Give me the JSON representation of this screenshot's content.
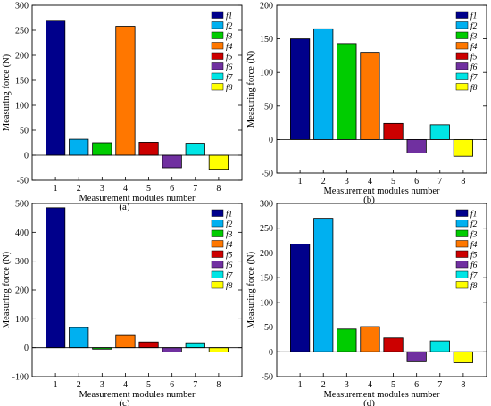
{
  "colors": {
    "f1": "#00008b",
    "f2": "#00b0f0",
    "f3": "#00cc00",
    "f4": "#ff7700",
    "f5": "#cc0000",
    "f6": "#7030a0",
    "f7": "#00e5e5",
    "f8": "#ffff00"
  },
  "chart_data": [
    {
      "type": "bar",
      "panel_label": "(a)",
      "xlabel": "Measurement modules number",
      "ylabel": "Measuring force  (N)",
      "categories": [
        "1",
        "2",
        "3",
        "4",
        "5",
        "6",
        "7",
        "8"
      ],
      "values": [
        270,
        32,
        25,
        258,
        26,
        -25,
        24,
        -28
      ],
      "ylim": [
        -50,
        300
      ],
      "yticks": [
        -50,
        0,
        50,
        100,
        150,
        200,
        250,
        300
      ],
      "legend": [
        "f1",
        "f2",
        "f3",
        "f4",
        "f5",
        "f6",
        "f7",
        "f8"
      ],
      "legend_position": "top-right",
      "grid": false
    },
    {
      "type": "bar",
      "panel_label": "(b)",
      "xlabel": "Measurement modules number",
      "ylabel": "Measuring force  (N)",
      "categories": [
        "1",
        "2",
        "3",
        "4",
        "5",
        "6",
        "7",
        "8"
      ],
      "values": [
        150,
        165,
        143,
        130,
        24,
        -20,
        22,
        -25
      ],
      "ylim": [
        -50,
        200
      ],
      "yticks": [
        -50,
        0,
        50,
        100,
        150,
        200
      ],
      "legend": [
        "f1",
        "f2",
        "f3",
        "f4",
        "f5",
        "f6",
        "f7",
        "f8"
      ],
      "legend_position": "top-right",
      "grid": false
    },
    {
      "type": "bar",
      "panel_label": "(c)",
      "xlabel": "Measurement modules number",
      "ylabel": "Measuring force  (N)",
      "categories": [
        "1",
        "2",
        "3",
        "4",
        "5",
        "6",
        "7",
        "8"
      ],
      "values": [
        485,
        70,
        -5,
        45,
        20,
        -15,
        17,
        -15
      ],
      "ylim": [
        -100,
        500
      ],
      "yticks": [
        -100,
        0,
        100,
        200,
        300,
        400,
        500
      ],
      "legend": [
        "f1",
        "f2",
        "f3",
        "f4",
        "f5",
        "f6",
        "f7",
        "f8"
      ],
      "legend_position": "top-right",
      "grid": false
    },
    {
      "type": "bar",
      "panel_label": "(d)",
      "xlabel": "Measurement modules number",
      "ylabel": "Measuring force  (N)",
      "categories": [
        "1",
        "2",
        "3",
        "4",
        "5",
        "6",
        "7",
        "8"
      ],
      "values": [
        218,
        270,
        46,
        51,
        28,
        -20,
        22,
        -22
      ],
      "ylim": [
        -50,
        300
      ],
      "yticks": [
        -50,
        0,
        50,
        100,
        150,
        200,
        250,
        300
      ],
      "legend": [
        "f1",
        "f2",
        "f3",
        "f4",
        "f5",
        "f6",
        "f7",
        "f8"
      ],
      "legend_position": "top-right",
      "grid": false
    }
  ]
}
